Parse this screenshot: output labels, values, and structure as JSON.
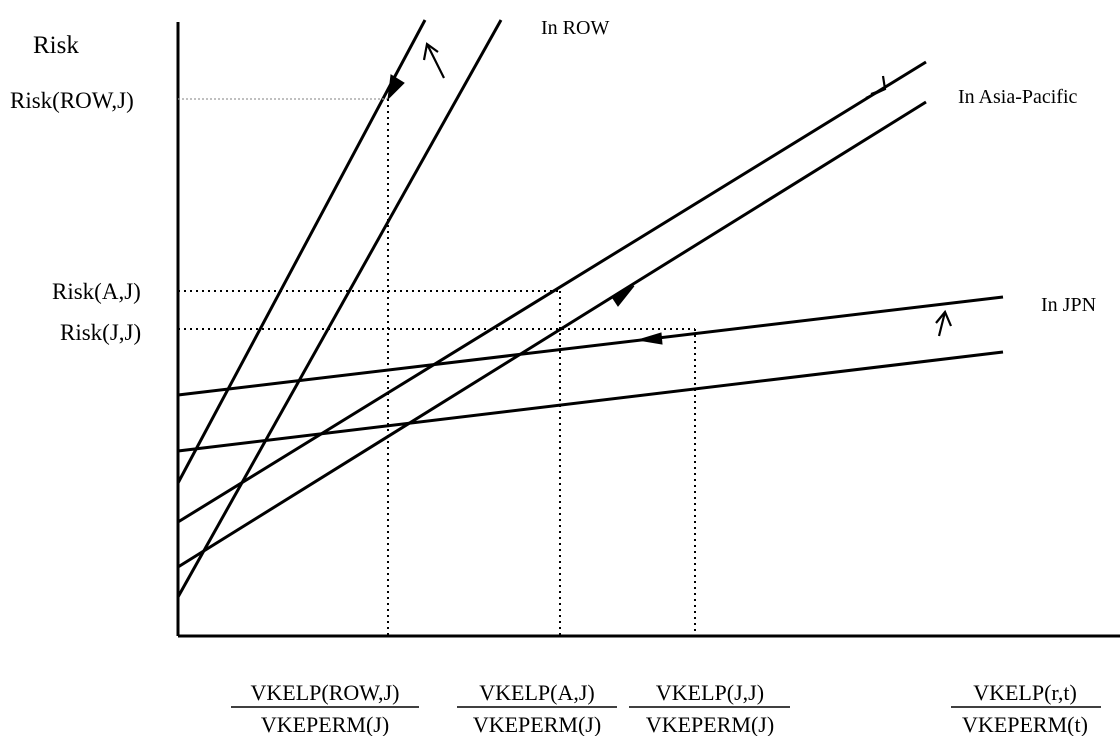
{
  "axes": {
    "y_title": "Risk",
    "y_labels": {
      "row": "Risk(ROW,J)",
      "asia": "Risk(A,J)",
      "japan": "Risk(J,J)"
    }
  },
  "regions": {
    "row": "In ROW",
    "asia": "In Asia-Pacific",
    "japan": "In JPN"
  },
  "x_labels": [
    {
      "numerator": "VKELP(ROW,J)",
      "denominator": "VKEPERM(J)"
    },
    {
      "numerator": "VKELP(A,J)",
      "denominator": "VKEPERM(J)"
    },
    {
      "numerator": "VKELP(J,J)",
      "denominator": "VKEPERM(J)"
    },
    {
      "numerator": "VKELP(r,t)",
      "denominator": "VKEPERM(t)"
    }
  ]
}
